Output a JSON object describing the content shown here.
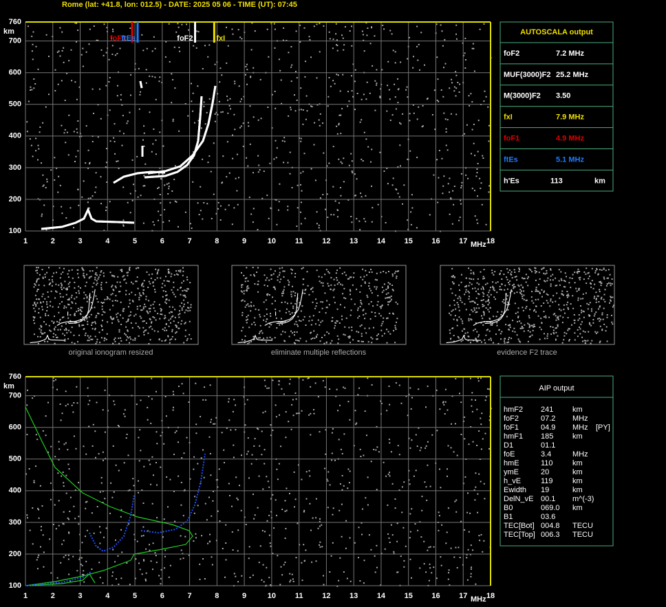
{
  "header": "Rome (lat: +41.8, lon: 012.5) - DATE: 2025 05 06 - TIME (UT): 07:45",
  "ionogram": {
    "xticks": [
      1,
      2,
      3,
      4,
      5,
      6,
      7,
      8,
      9,
      10,
      11,
      12,
      13,
      14,
      15,
      16,
      17,
      18
    ],
    "yticks": [
      100,
      200,
      300,
      400,
      500,
      600,
      700,
      760
    ],
    "x_unit": "MHz",
    "y_unit": "km",
    "markers": [
      {
        "label": "foF1",
        "value": 4.9,
        "color": "#e00000"
      },
      {
        "label": "ftEs",
        "value": 5.1,
        "color": "#1e7cff"
      },
      {
        "label": "foF2",
        "value": 7.2,
        "color": "#ffffff"
      },
      {
        "label": "fxI",
        "value": 7.9,
        "color": "#f0e000"
      }
    ]
  },
  "autoscala": {
    "title": "AUTOSCALA output",
    "rows": [
      {
        "cells": [
          "foF2",
          "7.2 MHz"
        ],
        "color": "#ffffff"
      },
      {
        "cells": [
          "MUF(3000)F2",
          "25.2 MHz"
        ],
        "color": "#ffffff"
      },
      {
        "cells": [
          "M(3000)F2",
          "3.50"
        ],
        "color": "#ffffff"
      },
      {
        "cells": [
          "fxI",
          "7.9 MHz"
        ],
        "color": "#f0e000"
      },
      {
        "cells": [
          "foF1",
          "4.9 MHz"
        ],
        "color": "#e00000"
      },
      {
        "cells": [
          "ftEs",
          "5.1 MHz"
        ],
        "color": "#1e7cff"
      },
      {
        "cells": [
          "h'Es",
          "113",
          "km"
        ],
        "color": "#ffffff"
      }
    ]
  },
  "thumbnails": [
    "original ionogram resized",
    "eliminate multiple reflections",
    "evidence F2 trace"
  ],
  "aip": {
    "title": "AIP output",
    "rows": [
      [
        "hmF2",
        "241",
        "km"
      ],
      [
        "foF2",
        "07.2",
        "MHz"
      ],
      [
        "foF1",
        "04.9",
        "MHz",
        "[PY]"
      ],
      [
        "hmF1",
        "185",
        "km"
      ],
      [
        "D1",
        "01.1"
      ],
      [
        "foE",
        "3.4",
        "MHz"
      ],
      [
        "hmE",
        "110",
        "km"
      ],
      [
        "ymE",
        "20",
        "km"
      ],
      [
        "h_vE",
        "119",
        "km"
      ],
      [
        "Ewidth",
        "19",
        "km"
      ],
      [
        "DelN_vE",
        "00.1",
        "m^(-3)"
      ],
      [
        "B0",
        "069.0",
        "km"
      ],
      [
        "B1",
        "03.6"
      ],
      [
        "TEC[Bot]",
        "004.8",
        "TECU"
      ],
      [
        "TEC[Top]",
        "006.3",
        "TECU"
      ]
    ]
  }
}
